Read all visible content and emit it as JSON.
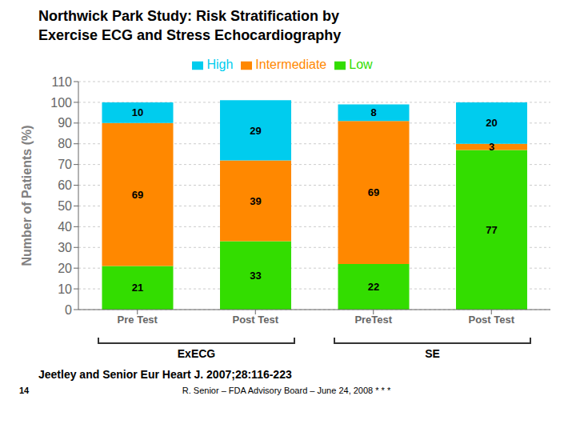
{
  "chart_data": {
    "type": "bar",
    "title": "Northwick Park Study: Risk Stratification by\nExercise ECG and Stress Echocardiography",
    "categories": [
      "Pre Test",
      "Post Test",
      "PreTest",
      "Post Test"
    ],
    "series": [
      {
        "name": "Low",
        "color": "#33dd00",
        "values": [
          21,
          33,
          22,
          77
        ]
      },
      {
        "name": "Intermediate",
        "color": "#ff8800",
        "values": [
          69,
          39,
          69,
          3
        ]
      },
      {
        "name": "High",
        "color": "#00ccee",
        "values": [
          10,
          29,
          8,
          20
        ]
      }
    ],
    "ylabel": "Number of Patients (%)",
    "ylim": [
      0,
      110
    ],
    "yticks": [
      0,
      10,
      20,
      30,
      40,
      50,
      60,
      70,
      80,
      90,
      100,
      110
    ],
    "stacked": true,
    "data_labels": true,
    "grid": true,
    "legend": "top",
    "annotations": [
      "ExECG",
      "SE",
      "Jeetley and Senior Eur Heart J. 2007;28:116-223",
      "R. Senior – FDA Advisory Board – June 24, 2008 * * *",
      "14"
    ]
  }
}
